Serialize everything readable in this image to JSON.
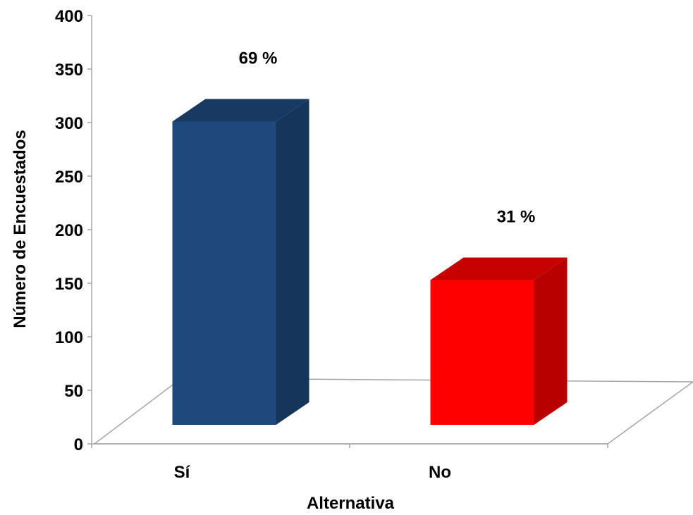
{
  "chart_data": {
    "type": "bar",
    "three_d": true,
    "categories": [
      "Sí",
      "No"
    ],
    "values": [
      287,
      137
    ],
    "data_labels": [
      "69 %",
      "31 %"
    ],
    "colors": [
      "#1F497D",
      "#FF0000"
    ],
    "xlabel": "Alternativa",
    "ylabel": "Número de Encuestados",
    "ylim": [
      0,
      400
    ],
    "yticks": [
      "0",
      "50",
      "100",
      "150",
      "200",
      "250",
      "300",
      "350",
      "400"
    ],
    "grid": false,
    "legend": "none"
  }
}
